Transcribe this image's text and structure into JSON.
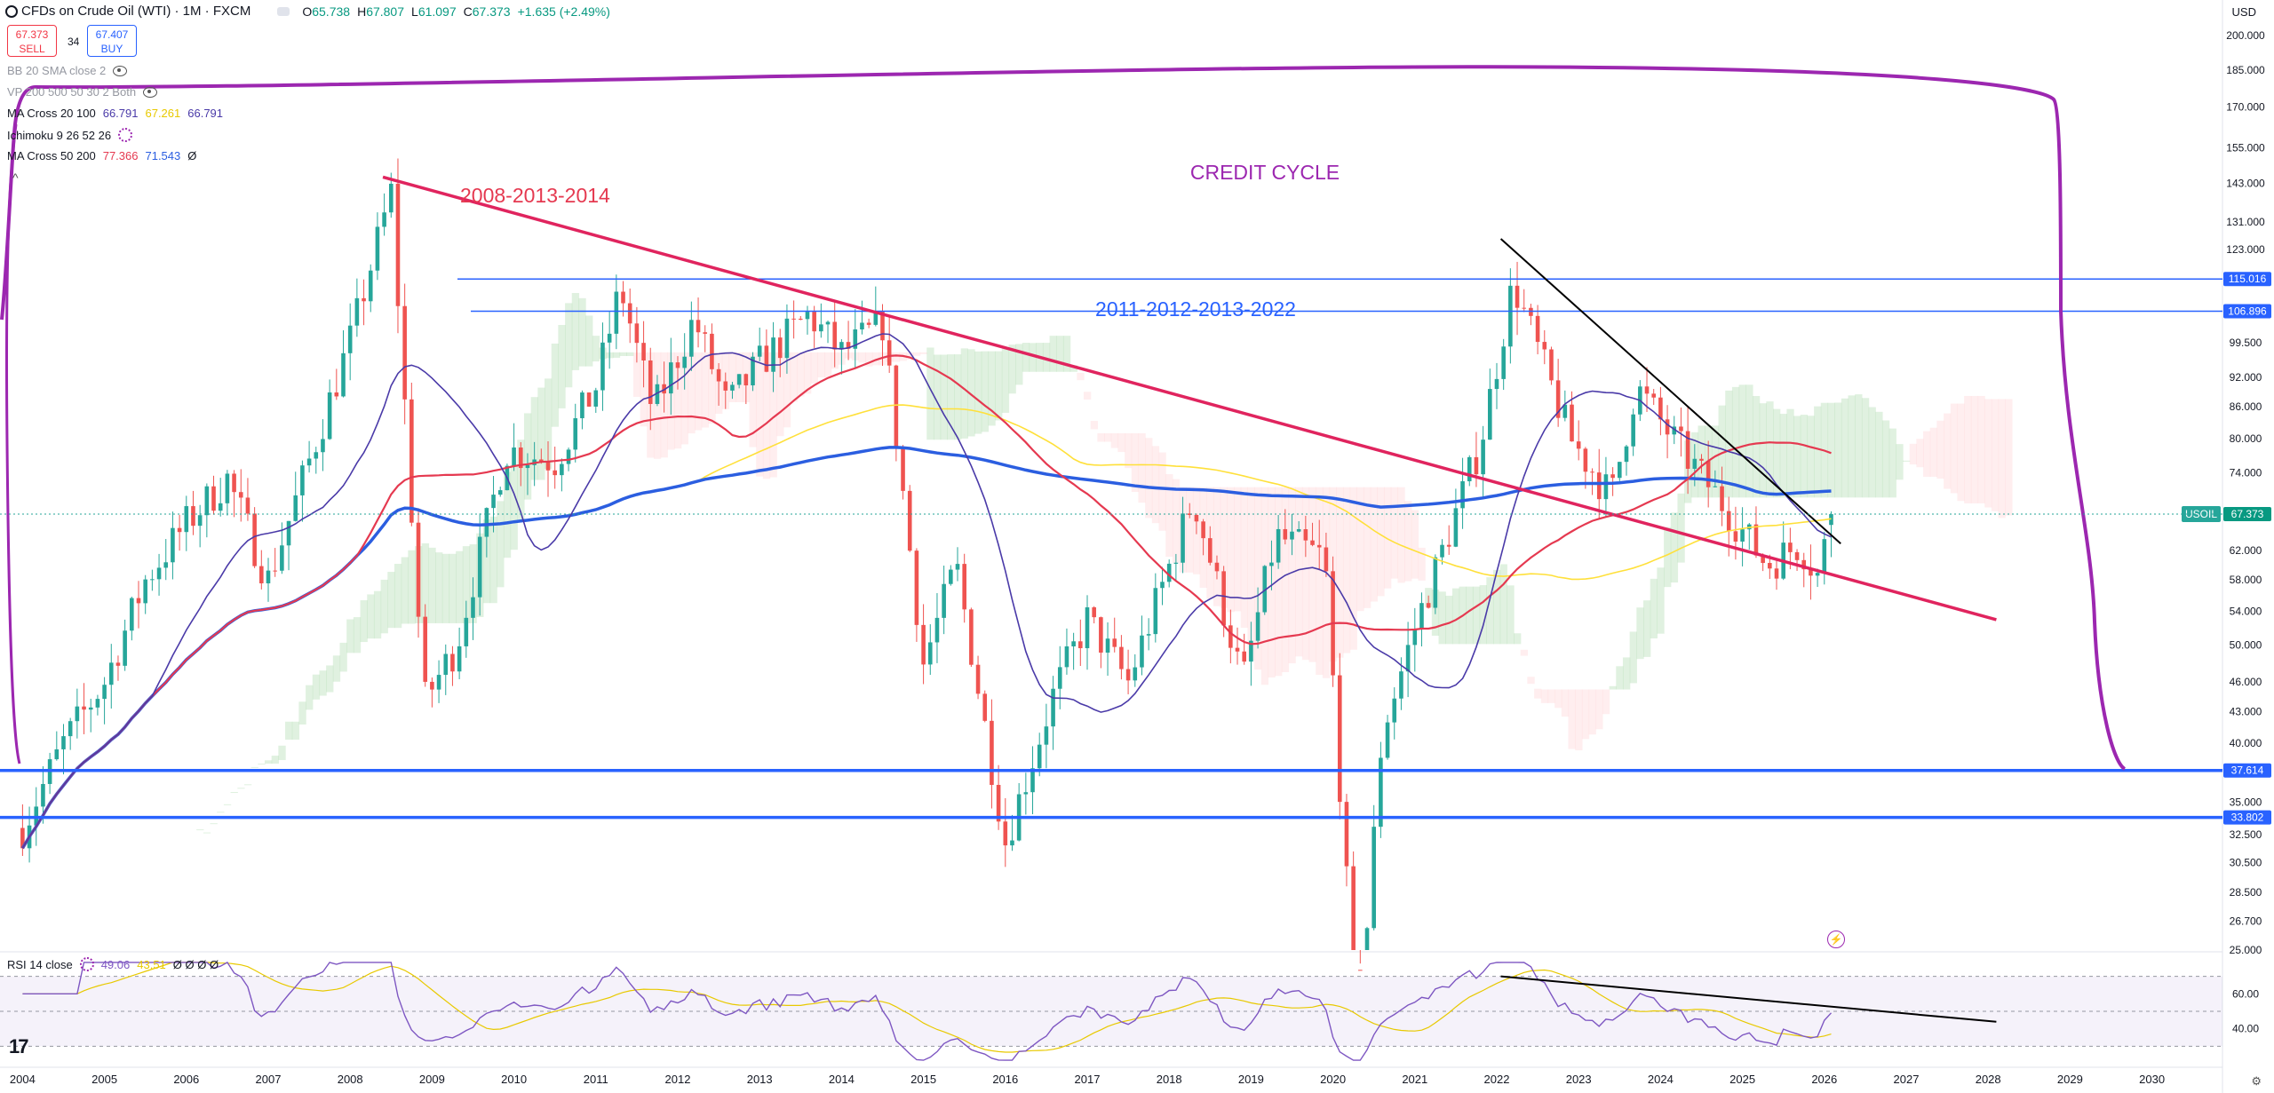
{
  "header": {
    "title": "CFDs on Crude Oil (WTI) · 1M · FXCM",
    "ohlc": [
      {
        "k": "O",
        "v": "65.738"
      },
      {
        "k": "H",
        "v": "67.807"
      },
      {
        "k": "L",
        "v": "61.097"
      },
      {
        "k": "C",
        "v": "67.373"
      },
      {
        "k": "",
        "v": "+1.635 (+2.49%)"
      }
    ],
    "sell_price": "67.373",
    "sell_label": "SELL",
    "buy_price": "67.407",
    "buy_label": "BUY",
    "spread": "34",
    "currency": "USD"
  },
  "indicators": [
    {
      "name": "BB 20 SMA close 2",
      "values": [],
      "hidden": true
    },
    {
      "name": "VP 200 500 50 30 2 Both",
      "values": [],
      "hidden": true
    },
    {
      "name": "MA Cross 20 100",
      "values": [
        {
          "text": "66.791",
          "color": "#4a3aa8"
        },
        {
          "text": "67.261",
          "color": "#ffe03a"
        },
        {
          "text": "66.791",
          "color": "#4a3aa8"
        }
      ]
    },
    {
      "name": "Ichimoku 9 26 52 26",
      "values": []
    },
    {
      "name": "MA Cross 50 200",
      "values": [
        {
          "text": "77.366",
          "color": "#e53950"
        },
        {
          "text": "71.543",
          "color": "#2b5ee0"
        },
        {
          "text": "Ø",
          "color": "#131722"
        }
      ]
    }
  ],
  "rsi": {
    "label": "RSI 14 close",
    "value": "49.06",
    "ma_value": "43.51",
    "extra": "Ø Ø Ø Ø",
    "ticks": [
      "60.00",
      "40.00"
    ]
  },
  "price_axis": {
    "ticks": [
      "200.000",
      "185.000",
      "170.000",
      "155.000",
      "143.000",
      "131.000",
      "123.000",
      "115.000",
      "106.896",
      "99.500",
      "92.000",
      "86.000",
      "80.000",
      "74.000",
      "67.373",
      "62.000",
      "58.000",
      "54.000",
      "50.000",
      "46.000",
      "43.000",
      "40.000",
      "37.614",
      "35.000",
      "32.500",
      "30.500",
      "28.500",
      "26.700",
      "25.000"
    ]
  },
  "price_tags": [
    {
      "label": "115.016",
      "color": "#2962ff"
    },
    {
      "label": "106.896",
      "color": "#2962ff"
    },
    {
      "label": "67.373",
      "color": "#089981"
    },
    {
      "label": "37.614",
      "color": "#2962ff"
    },
    {
      "label": "33.802",
      "color": "#2962ff"
    }
  ],
  "symbol_tag": "USOIL",
  "annotations": [
    {
      "text": "CREDIT CYCLE",
      "color": "#9c27b0"
    },
    {
      "text": "2008-2013-2014",
      "color": "#e53950"
    },
    {
      "text": "2011-2012-2013-2022",
      "color": "#2962ff"
    }
  ],
  "chart_data": {
    "type": "candlestick",
    "title": "CFDs on Crude Oil (WTI) · 1M · FXCM",
    "scale": "log",
    "xlabel": "",
    "ylabel": "",
    "x": [
      "2004",
      "2005",
      "2006",
      "2007",
      "2008",
      "2009",
      "2010",
      "2011",
      "2012",
      "2013",
      "2014",
      "2015",
      "2016",
      "2017",
      "2018",
      "2019",
      "2020",
      "2021",
      "2022",
      "2023",
      "2024",
      "2025",
      "2026",
      "2027",
      "2028",
      "2029",
      "2030"
    ],
    "ylim": [
      25,
      205
    ],
    "yearly_price_path": [
      {
        "year": 2004.0,
        "close": 33
      },
      {
        "year": 2004.5,
        "close": 40
      },
      {
        "year": 2005.0,
        "close": 46
      },
      {
        "year": 2005.5,
        "close": 58
      },
      {
        "year": 2006.0,
        "close": 66
      },
      {
        "year": 2006.5,
        "close": 73
      },
      {
        "year": 2007.0,
        "close": 58
      },
      {
        "year": 2007.5,
        "close": 76
      },
      {
        "year": 2008.0,
        "close": 100
      },
      {
        "year": 2008.5,
        "close": 140
      },
      {
        "year": 2008.9,
        "close": 44
      },
      {
        "year": 2009.3,
        "close": 50
      },
      {
        "year": 2009.9,
        "close": 78
      },
      {
        "year": 2010.5,
        "close": 76
      },
      {
        "year": 2011.0,
        "close": 90
      },
      {
        "year": 2011.3,
        "close": 113
      },
      {
        "year": 2011.7,
        "close": 85
      },
      {
        "year": 2012.2,
        "close": 105
      },
      {
        "year": 2012.6,
        "close": 86
      },
      {
        "year": 2013.0,
        "close": 95
      },
      {
        "year": 2013.6,
        "close": 106
      },
      {
        "year": 2014.0,
        "close": 97
      },
      {
        "year": 2014.5,
        "close": 104
      },
      {
        "year": 2015.0,
        "close": 48
      },
      {
        "year": 2015.4,
        "close": 60
      },
      {
        "year": 2016.0,
        "close": 32
      },
      {
        "year": 2016.6,
        "close": 45
      },
      {
        "year": 2017.0,
        "close": 53
      },
      {
        "year": 2017.5,
        "close": 46
      },
      {
        "year": 2018.3,
        "close": 70
      },
      {
        "year": 2018.9,
        "close": 46
      },
      {
        "year": 2019.3,
        "close": 64
      },
      {
        "year": 2019.9,
        "close": 61
      },
      {
        "year": 2020.3,
        "close": 20
      },
      {
        "year": 2020.6,
        "close": 41
      },
      {
        "year": 2021.0,
        "close": 52
      },
      {
        "year": 2021.8,
        "close": 79
      },
      {
        "year": 2022.2,
        "close": 114
      },
      {
        "year": 2022.9,
        "close": 80
      },
      {
        "year": 2023.4,
        "close": 70
      },
      {
        "year": 2023.7,
        "close": 90
      },
      {
        "year": 2024.2,
        "close": 79
      },
      {
        "year": 2024.7,
        "close": 70
      },
      {
        "year": 2025.3,
        "close": 60
      },
      {
        "year": 2025.7,
        "close": 63
      },
      {
        "year": 2025.95,
        "close": 58
      },
      {
        "year": 2026.05,
        "close": 67.4
      }
    ],
    "horizontal_levels": [
      115.016,
      106.896,
      37.614,
      33.802
    ],
    "trendlines": [
      {
        "name": "2008-2013-2014",
        "from": [
          2008.4,
          145
        ],
        "to": [
          2028.1,
          53
        ]
      },
      {
        "name": "2022 downtrend",
        "from": [
          2022.05,
          126
        ],
        "to": [
          2026.2,
          63
        ]
      }
    ],
    "rsi_range": [
      20,
      80
    ],
    "legend_position": "top-left"
  },
  "colors": {
    "bull": "#26a69a",
    "bear": "#ef5350",
    "ma_fast": "#4a3aa8",
    "ma_mid": "#ffe03a",
    "ma_50": "#e53950",
    "ma_200": "#2b5ee0",
    "trend_red": "#e0245e",
    "level_blue": "#2962ff",
    "cycle_purple": "#9c27b0",
    "cloud_green": "#a5d6a7",
    "cloud_red": "#ffcdd2"
  }
}
